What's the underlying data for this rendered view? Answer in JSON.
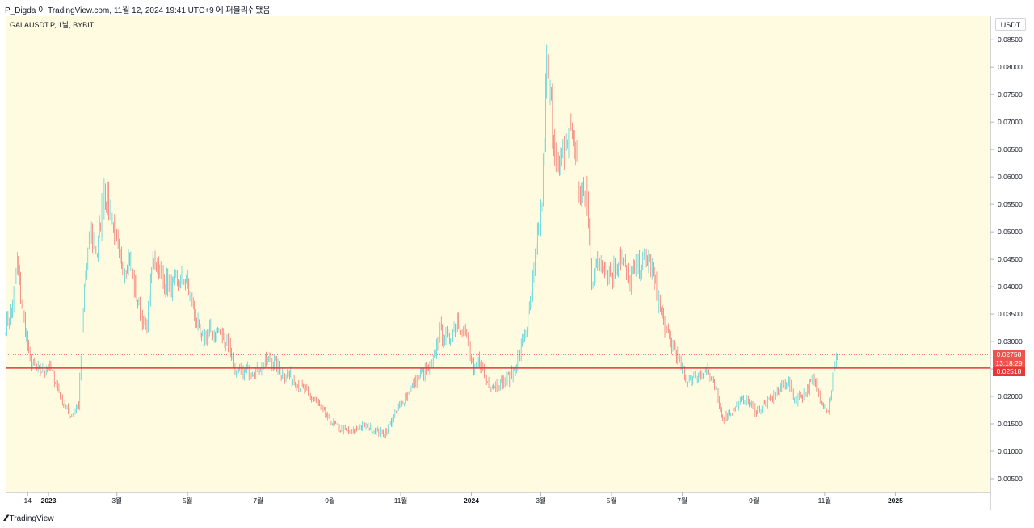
{
  "header": {
    "published": "P_Digda 이 TradingView.com, 11월 12, 2024 19:41 UTC+9 에 퍼블리쉬됐음"
  },
  "legend": {
    "symbol": "GALAUSDT.P, 1날, BYBIT"
  },
  "price_scale": {
    "currency": "USDT"
  },
  "price_tags": {
    "last_price": "0.02758",
    "countdown": "13:18:29",
    "level_price": "0.02518"
  },
  "footer": {
    "brand": "TradingView"
  },
  "colors": {
    "background": "#fffbe0",
    "up": "#26c6da",
    "down": "#ef5350",
    "level_line": "#e53935",
    "last_price_line": "#ef5350"
  },
  "chart_data": {
    "type": "candlestick",
    "ylim": [
      0.0025,
      0.0893
    ],
    "y_ticks": [
      "0.08500",
      "0.08000",
      "0.07500",
      "0.07000",
      "0.06500",
      "0.06000",
      "0.05500",
      "0.05000",
      "0.04500",
      "0.04000",
      "0.03500",
      "0.03000",
      "0.02500",
      "0.02000",
      "0.01500",
      "0.01000",
      "0.00500"
    ],
    "x_ticks": [
      {
        "label": "14",
        "date": "2022-12-14"
      },
      {
        "label": "2023",
        "date": "2023-01-01"
      },
      {
        "label": "3월",
        "date": "2023-03-01"
      },
      {
        "label": "5월",
        "date": "2023-05-01"
      },
      {
        "label": "7월",
        "date": "2023-07-01"
      },
      {
        "label": "9월",
        "date": "2023-09-01"
      },
      {
        "label": "11월",
        "date": "2023-11-01"
      },
      {
        "label": "2024",
        "date": "2024-01-01"
      },
      {
        "label": "3월",
        "date": "2024-03-01"
      },
      {
        "label": "5월",
        "date": "2024-05-01"
      },
      {
        "label": "7월",
        "date": "2024-07-01"
      },
      {
        "label": "9월",
        "date": "2024-09-01"
      },
      {
        "label": "11월",
        "date": "2024-11-01"
      },
      {
        "label": "2025",
        "date": "2025-01-01"
      }
    ],
    "xlim": [
      "2022-11-25",
      "2025-03-24"
    ],
    "horizontal_level": 0.02518,
    "last_price": 0.02758,
    "price_path": [
      [
        "2022-11-25",
        0.033
      ],
      [
        "2022-11-30",
        0.0355
      ],
      [
        "2022-12-05",
        0.044
      ],
      [
        "2022-12-10",
        0.035
      ],
      [
        "2022-12-16",
        0.0265
      ],
      [
        "2022-12-24",
        0.0245
      ],
      [
        "2023-01-01",
        0.0255
      ],
      [
        "2023-01-06",
        0.0235
      ],
      [
        "2023-01-12",
        0.0195
      ],
      [
        "2023-01-20",
        0.0165
      ],
      [
        "2023-01-27",
        0.0185
      ],
      [
        "2023-02-01",
        0.04
      ],
      [
        "2023-02-06",
        0.05
      ],
      [
        "2023-02-12",
        0.046
      ],
      [
        "2023-02-18",
        0.058
      ],
      [
        "2023-02-24",
        0.053
      ],
      [
        "2023-03-05",
        0.043
      ],
      [
        "2023-03-12",
        0.045
      ],
      [
        "2023-03-20",
        0.036
      ],
      [
        "2023-03-26",
        0.032
      ],
      [
        "2023-04-02",
        0.046
      ],
      [
        "2023-04-10",
        0.041
      ],
      [
        "2023-04-20",
        0.04
      ],
      [
        "2023-04-28",
        0.042
      ],
      [
        "2023-05-05",
        0.037
      ],
      [
        "2023-05-13",
        0.03
      ],
      [
        "2023-05-20",
        0.032
      ],
      [
        "2023-05-28",
        0.0315
      ],
      [
        "2023-06-05",
        0.03
      ],
      [
        "2023-06-12",
        0.024
      ],
      [
        "2023-06-20",
        0.0245
      ],
      [
        "2023-06-28",
        0.025
      ],
      [
        "2023-07-05",
        0.0255
      ],
      [
        "2023-07-12",
        0.027
      ],
      [
        "2023-07-20",
        0.0245
      ],
      [
        "2023-07-30",
        0.0235
      ],
      [
        "2023-08-10",
        0.021
      ],
      [
        "2023-08-20",
        0.019
      ],
      [
        "2023-08-30",
        0.016
      ],
      [
        "2023-09-10",
        0.014
      ],
      [
        "2023-09-20",
        0.0135
      ],
      [
        "2023-09-30",
        0.0148
      ],
      [
        "2023-10-10",
        0.0138
      ],
      [
        "2023-10-18",
        0.0132
      ],
      [
        "2023-10-28",
        0.017
      ],
      [
        "2023-11-08",
        0.021
      ],
      [
        "2023-11-18",
        0.024
      ],
      [
        "2023-11-28",
        0.0255
      ],
      [
        "2023-12-05",
        0.032
      ],
      [
        "2023-12-12",
        0.03
      ],
      [
        "2023-12-20",
        0.034
      ],
      [
        "2023-12-28",
        0.031
      ],
      [
        "2024-01-03",
        0.024
      ],
      [
        "2024-01-08",
        0.027
      ],
      [
        "2024-01-13",
        0.023
      ],
      [
        "2024-01-20",
        0.022
      ],
      [
        "2024-01-28",
        0.0225
      ],
      [
        "2024-02-05",
        0.024
      ],
      [
        "2024-02-12",
        0.028
      ],
      [
        "2024-02-20",
        0.035
      ],
      [
        "2024-02-26",
        0.046
      ],
      [
        "2024-03-02",
        0.056
      ],
      [
        "2024-03-06",
        0.08
      ],
      [
        "2024-03-10",
        0.072
      ],
      [
        "2024-03-16",
        0.06
      ],
      [
        "2024-03-22",
        0.065
      ],
      [
        "2024-03-28",
        0.069
      ],
      [
        "2024-04-04",
        0.056
      ],
      [
        "2024-04-09",
        0.058
      ],
      [
        "2024-04-14",
        0.042
      ],
      [
        "2024-04-22",
        0.045
      ],
      [
        "2024-05-01",
        0.042
      ],
      [
        "2024-05-08",
        0.046
      ],
      [
        "2024-05-16",
        0.041
      ],
      [
        "2024-05-24",
        0.044
      ],
      [
        "2024-06-02",
        0.045
      ],
      [
        "2024-06-10",
        0.038
      ],
      [
        "2024-06-18",
        0.031
      ],
      [
        "2024-06-26",
        0.028
      ],
      [
        "2024-07-04",
        0.023
      ],
      [
        "2024-07-12",
        0.0235
      ],
      [
        "2024-07-22",
        0.025
      ],
      [
        "2024-07-30",
        0.021
      ],
      [
        "2024-08-05",
        0.016
      ],
      [
        "2024-08-14",
        0.0175
      ],
      [
        "2024-08-24",
        0.0195
      ],
      [
        "2024-09-03",
        0.0175
      ],
      [
        "2024-09-12",
        0.0185
      ],
      [
        "2024-09-22",
        0.021
      ],
      [
        "2024-09-30",
        0.023
      ],
      [
        "2024-10-06",
        0.0195
      ],
      [
        "2024-10-14",
        0.0205
      ],
      [
        "2024-10-22",
        0.023
      ],
      [
        "2024-10-30",
        0.019
      ],
      [
        "2024-11-04",
        0.0175
      ],
      [
        "2024-11-08",
        0.023
      ],
      [
        "2024-11-12",
        0.0276
      ]
    ]
  }
}
